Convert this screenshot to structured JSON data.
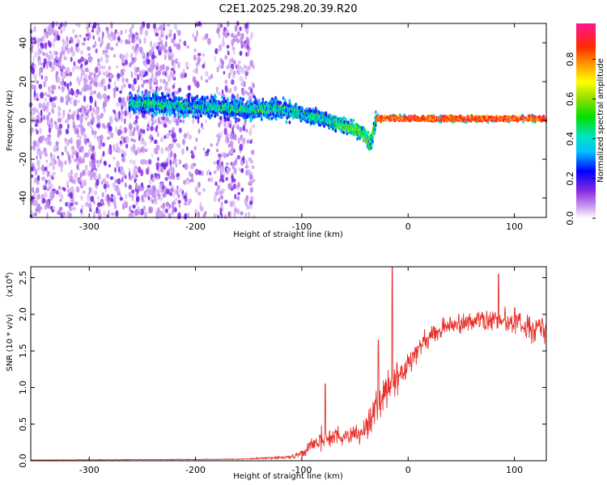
{
  "title": "C2E1.2025.298.20.39.R20",
  "chart_data": [
    {
      "type": "heatmap",
      "name": "spectrogram",
      "xlabel": "Height of straight line (km)",
      "ylabel": "Frequency (Hz)",
      "xlim": [
        -355,
        130
      ],
      "ylim": [
        -50,
        50
      ],
      "xticks": [
        -300,
        -200,
        -100,
        0,
        100
      ],
      "xtick_labels": [
        "-300",
        "-200",
        "-100",
        "0",
        "100"
      ],
      "yticks": [
        40,
        20,
        0,
        -20,
        -40
      ],
      "ytick_labels": [
        "40",
        "20",
        "0",
        "-20",
        "-40"
      ],
      "colorbar": {
        "label": "Normalized spectral amplitude",
        "range": [
          0.0,
          0.98
        ],
        "ticks": [
          0.0,
          0.2,
          0.4,
          0.6,
          0.8
        ],
        "tick_labels": [
          "0.0",
          "0.2",
          "0.4",
          "0.6",
          "0.8"
        ]
      },
      "ridge": {
        "x": [
          -260,
          -200,
          -150,
          -120,
          -100,
          -80,
          -60,
          -45,
          -40,
          -35,
          -30,
          0,
          50,
          100,
          130
        ],
        "freq": [
          9,
          7,
          6,
          6,
          3,
          1,
          -3,
          -6,
          -9,
          -12,
          1,
          1,
          1,
          1,
          1
        ]
      },
      "noise_region": [
        -355,
        -145
      ]
    },
    {
      "type": "line",
      "name": "snr",
      "xlabel": "Height of straight line (km)",
      "ylabel": "SNR (10 * v/v)",
      "ylabel_scale": "(x10",
      "ylabel_exponent": "4",
      "xlim": [
        -355,
        130
      ],
      "ylim": [
        0.0,
        2.65
      ],
      "xticks": [
        -300,
        -200,
        -100,
        0,
        100
      ],
      "xtick_labels": [
        "-300",
        "-200",
        "-100",
        "0",
        "100"
      ],
      "yticks": [
        0.0,
        0.5,
        1.0,
        1.5,
        2.0,
        2.5
      ],
      "ytick_labels": [
        "0.0",
        "0.5",
        "1.0",
        "1.5",
        "2.0",
        "2.5"
      ],
      "color": "#e8312b",
      "envelope": {
        "x": [
          -355,
          -160,
          -110,
          -95,
          -85,
          -75,
          -60,
          -45,
          -35,
          -25,
          -15,
          -5,
          5,
          20,
          40,
          60,
          80,
          100,
          115,
          130
        ],
        "mean": [
          0.01,
          0.02,
          0.05,
          0.14,
          0.28,
          0.3,
          0.32,
          0.38,
          0.55,
          0.9,
          1.05,
          1.2,
          1.45,
          1.7,
          1.85,
          1.9,
          1.92,
          1.9,
          1.8,
          1.8
        ],
        "spread": [
          0.005,
          0.01,
          0.03,
          0.12,
          0.22,
          0.18,
          0.2,
          0.25,
          0.3,
          0.4,
          0.35,
          0.3,
          0.25,
          0.22,
          0.22,
          0.22,
          0.25,
          0.25,
          0.25,
          0.25
        ]
      },
      "peaks": [
        [
          -78,
          1.05
        ],
        [
          -15,
          2.65
        ],
        [
          -28,
          1.65
        ],
        [
          85,
          2.55
        ]
      ]
    }
  ]
}
